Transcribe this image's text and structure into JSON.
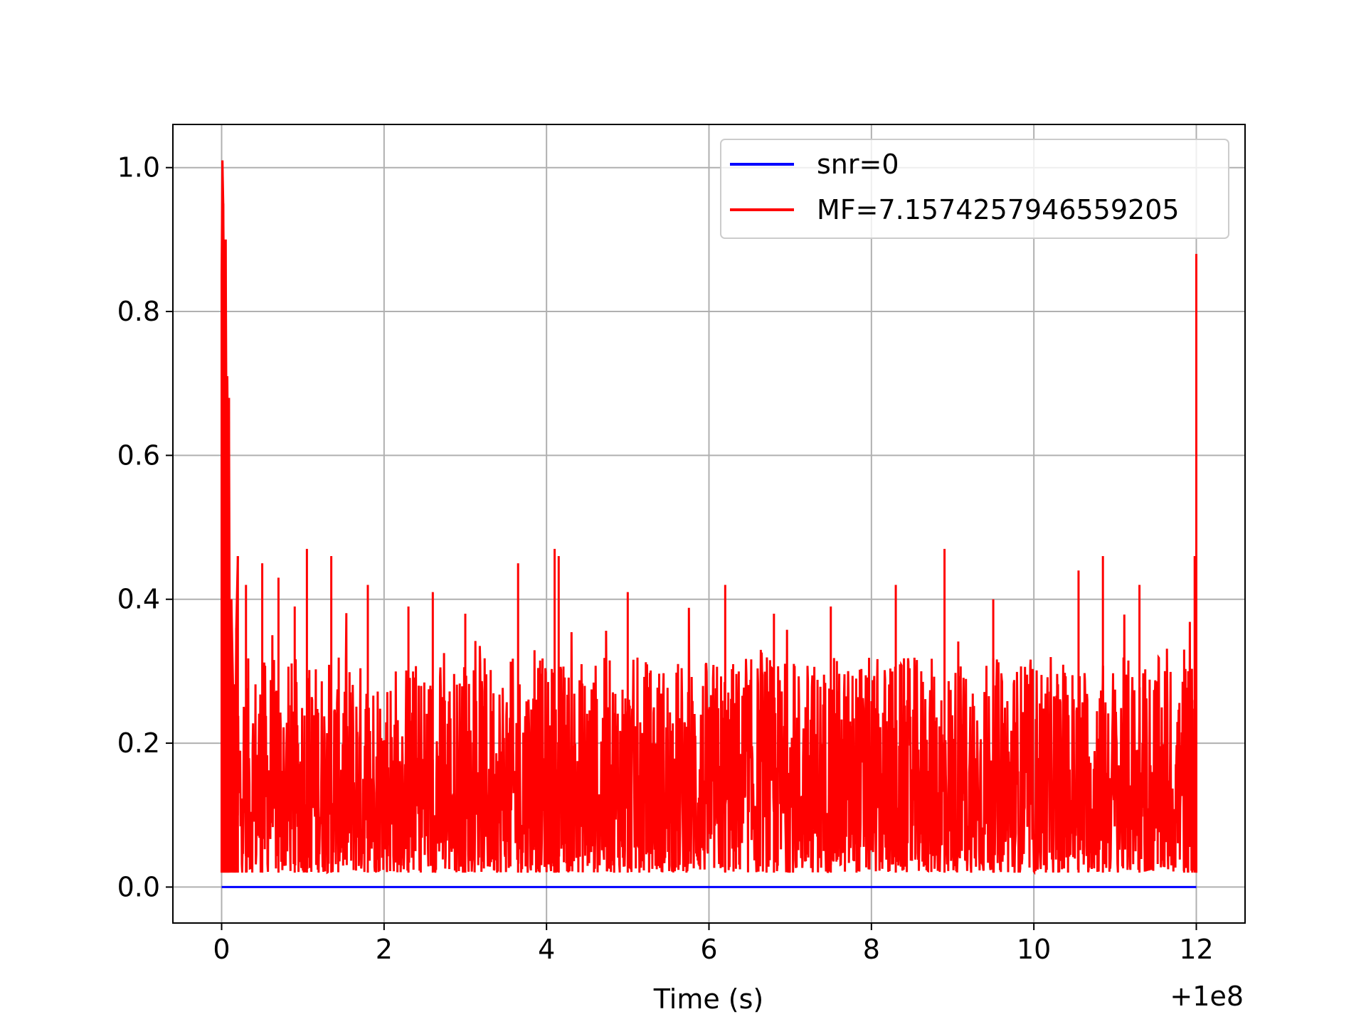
{
  "chart_data": {
    "type": "line",
    "title": "",
    "xlabel": "Time (s)",
    "ylabel": "",
    "x_offset_label": "+1e8",
    "xlim": [
      -0.6,
      12.6
    ],
    "ylim": [
      -0.05,
      1.06
    ],
    "xticks": [
      0,
      2,
      4,
      6,
      8,
      10,
      12
    ],
    "xtick_labels": [
      "0",
      "2",
      "4",
      "6",
      "8",
      "10",
      "12"
    ],
    "yticks": [
      0.0,
      0.2,
      0.4,
      0.6,
      0.8,
      1.0
    ],
    "ytick_labels": [
      "0.0",
      "0.2",
      "0.4",
      "0.6",
      "0.8",
      "1.0"
    ],
    "grid": true,
    "legend_position": "top-right",
    "series": [
      {
        "name": "snr=0",
        "color": "#0000ff",
        "x": [
          0,
          12
        ],
        "y": [
          0.0,
          0.0
        ]
      },
      {
        "name": "MF=7.1574257946559205",
        "color": "#ff0000",
        "x": [
          0.0,
          0.01,
          0.02,
          0.03,
          0.04,
          0.05,
          0.06,
          0.07,
          0.08,
          0.09,
          0.1,
          0.12,
          0.14,
          0.16,
          0.18,
          0.2,
          0.3,
          0.5,
          0.7,
          0.9,
          1.05,
          1.35,
          1.8,
          2.3,
          2.6,
          3.0,
          3.65,
          4.1,
          4.15,
          5.0,
          6.2,
          6.8,
          7.5,
          8.3,
          8.9,
          9.5,
          10.55,
          10.85,
          11.3,
          11.85,
          11.9,
          11.95,
          11.98,
          12.0,
          12.0
        ],
        "y": [
          0.85,
          1.01,
          0.95,
          0.8,
          0.48,
          0.9,
          0.6,
          0.71,
          0.55,
          0.68,
          0.33,
          0.4,
          0.28,
          0.03,
          0.36,
          0.46,
          0.42,
          0.45,
          0.43,
          0.39,
          0.47,
          0.46,
          0.42,
          0.39,
          0.41,
          0.38,
          0.45,
          0.47,
          0.46,
          0.41,
          0.42,
          0.38,
          0.39,
          0.42,
          0.47,
          0.4,
          0.44,
          0.46,
          0.42,
          0.33,
          0.3,
          0.26,
          0.46,
          0.88,
          0.13
        ]
      }
    ]
  }
}
